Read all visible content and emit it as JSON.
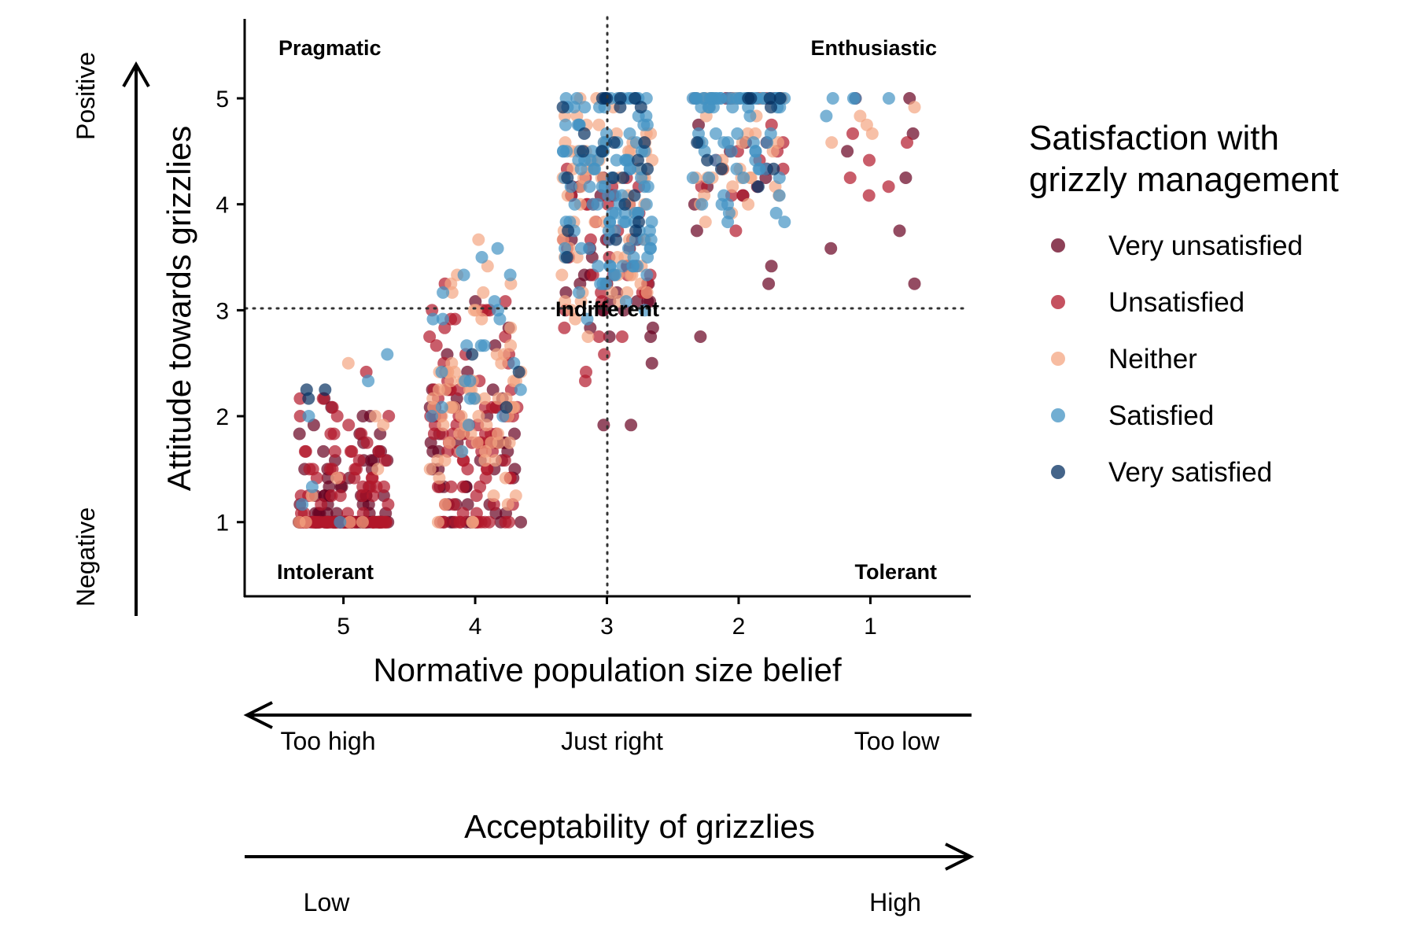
{
  "chart_data": {
    "type": "scatter",
    "title": "",
    "xlabel": "Normative population size belief",
    "ylabel": "Attitude towards grizzlies",
    "x_ticks": [
      "5",
      "4",
      "3",
      "2",
      "1"
    ],
    "y_ticks": [
      "1",
      "2",
      "3",
      "4",
      "5"
    ],
    "x_reversed": true,
    "xlim": [
      5.75,
      0.25
    ],
    "ylim": [
      0.3,
      5.75
    ],
    "reference_lines": {
      "x": 3,
      "y": 3
    },
    "grid": false,
    "jitter": true,
    "quadrant_labels": {
      "top_left": "Pragmatic",
      "top_right": "Enthusiastic",
      "center": "Indifferent",
      "bottom_left": "Intolerant",
      "bottom_right": "Tolerant"
    },
    "y_guide": {
      "top": "Positive",
      "bottom": "Negative"
    },
    "x_guide": {
      "left": "Too high",
      "middle": "Just right",
      "right": "Too low"
    },
    "secondary_axis": {
      "title": "Acceptability of grizzlies",
      "low": "Low",
      "high": "High"
    },
    "legend": {
      "title_line1": "Satisfaction with",
      "title_line2": "grizzly management",
      "position": "right"
    },
    "series": [
      {
        "name": "Very unsatisfied",
        "color": "#67001f",
        "x_levels": [
          5,
          4,
          3,
          2,
          1
        ],
        "counts": [
          110,
          55,
          35,
          15,
          8
        ]
      },
      {
        "name": "Unsatisfied",
        "color": "#b2182b",
        "x_levels": [
          5,
          4,
          3,
          2,
          1
        ],
        "counts": [
          95,
          90,
          40,
          20,
          6
        ]
      },
      {
        "name": "Neither",
        "color": "#f4a582",
        "x_levels": [
          5,
          4,
          3,
          2,
          1
        ],
        "counts": [
          10,
          75,
          70,
          40,
          5
        ]
      },
      {
        "name": "Satisfied",
        "color": "#4393c3",
        "x_levels": [
          5,
          4,
          3,
          2,
          1
        ],
        "counts": [
          6,
          25,
          120,
          75,
          5
        ]
      },
      {
        "name": "Very satisfied",
        "color": "#053061",
        "x_levels": [
          5,
          4,
          3,
          2,
          1
        ],
        "counts": [
          3,
          3,
          25,
          10,
          0
        ]
      }
    ]
  }
}
